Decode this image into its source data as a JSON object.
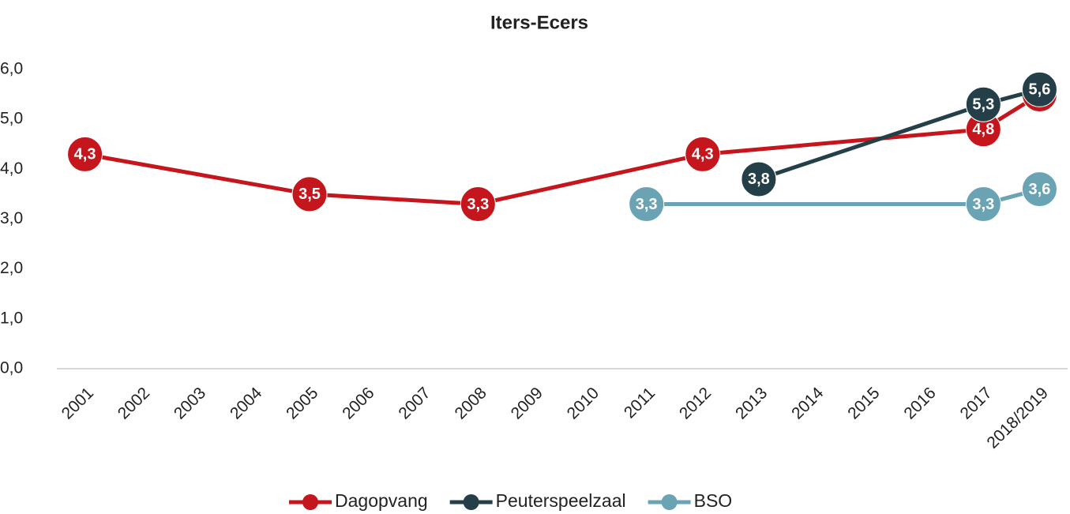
{
  "chart_data": {
    "type": "line",
    "title": "Iters-Ecers",
    "categories": [
      "2001",
      "2002",
      "2003",
      "2004",
      "2005",
      "2006",
      "2007",
      "2008",
      "2009",
      "2010",
      "2011",
      "2012",
      "2013",
      "2014",
      "2015",
      "2016",
      "2017",
      "2018/2019"
    ],
    "series": [
      {
        "name": "Dagopvang",
        "color": "#c4161c",
        "values": [
          4.3,
          null,
          null,
          null,
          3.5,
          null,
          null,
          3.3,
          null,
          null,
          null,
          4.3,
          null,
          null,
          null,
          null,
          4.8,
          5.5
        ],
        "value_labels": [
          "4,3",
          null,
          null,
          null,
          "3,5",
          null,
          null,
          "3,3",
          null,
          null,
          null,
          "4,3",
          null,
          null,
          null,
          null,
          "4,8",
          null
        ]
      },
      {
        "name": "Peuterspeelzaal",
        "color": "#243f48",
        "values": [
          null,
          null,
          null,
          null,
          null,
          null,
          null,
          null,
          null,
          null,
          null,
          null,
          3.8,
          null,
          null,
          null,
          5.3,
          5.6
        ],
        "value_labels": [
          null,
          null,
          null,
          null,
          null,
          null,
          null,
          null,
          null,
          null,
          null,
          null,
          "3,8",
          null,
          null,
          null,
          "5,3",
          "5,6"
        ]
      },
      {
        "name": "BSO",
        "color": "#6aa3b4",
        "values": [
          null,
          null,
          null,
          null,
          null,
          null,
          null,
          null,
          null,
          null,
          3.3,
          null,
          null,
          null,
          null,
          null,
          3.3,
          3.6
        ],
        "value_labels": [
          null,
          null,
          null,
          null,
          null,
          null,
          null,
          null,
          null,
          null,
          "3,3",
          null,
          null,
          null,
          null,
          null,
          "3,3",
          "3,6"
        ]
      }
    ],
    "ylim": [
      0,
      6
    ],
    "yticks": [
      {
        "value": 0,
        "label": "0,0"
      },
      {
        "value": 1,
        "label": "1,0"
      },
      {
        "value": 2,
        "label": "2,0"
      },
      {
        "value": 3,
        "label": "3,0"
      },
      {
        "value": 4,
        "label": "4,0"
      },
      {
        "value": 5,
        "label": "5,0"
      },
      {
        "value": 6,
        "label": "6,0"
      }
    ],
    "connect_gaps": true,
    "grid": false,
    "legend": "bottom"
  }
}
